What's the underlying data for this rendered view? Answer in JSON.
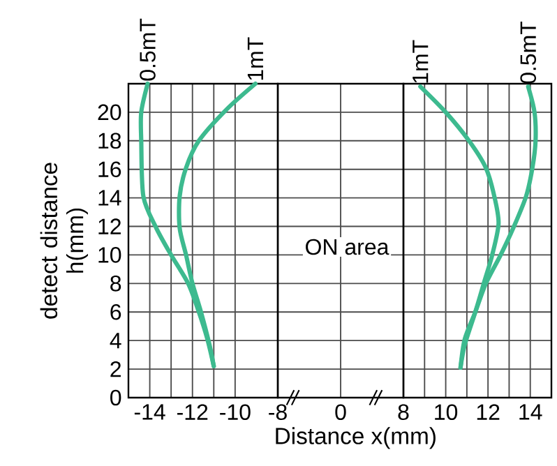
{
  "chart_data": [
    {
      "type": "line",
      "ylabel": "detect distance h(mm)",
      "xlim": [
        -15,
        -8
      ],
      "xticks": [
        -14,
        {
          "value": -13,
          "label": null
        },
        -12,
        {
          "value": -11,
          "label": null
        },
        -10,
        -8
      ],
      "ylim": [
        0,
        22
      ],
      "yticks": [
        0,
        2,
        4,
        6,
        8,
        10,
        12,
        14,
        16,
        18,
        20
      ],
      "grid": true,
      "series": [
        {
          "name": "0.5mT",
          "color": "#3dba8f",
          "x": [
            -14.1,
            -14.4,
            -14.4,
            -14.3,
            -13.7,
            -13.0,
            -12.2,
            -11.7,
            -11.3,
            -11.0
          ],
          "values": [
            22,
            20,
            18,
            14.1,
            11.9,
            10,
            8,
            6,
            4.1,
            2.2
          ]
        },
        {
          "name": "1mT",
          "color": "#3dba8f",
          "x": [
            -9.05,
            -10.4,
            -11.7,
            -12.3,
            -12.6,
            -12.6,
            -12.3,
            -12.0,
            -11.6,
            -11.2,
            -11.0
          ],
          "values": [
            22,
            20.2,
            18,
            16.1,
            14.1,
            11.9,
            10,
            8,
            6,
            3.7,
            2.2
          ]
        }
      ]
    },
    {
      "type": "line",
      "xlabel": "Distance x(mm)",
      "annotations": [
        "ON area"
      ],
      "categories": [
        "0"
      ],
      "ylim": [
        0,
        22
      ],
      "yticks": [
        0,
        2,
        4,
        6,
        8,
        10,
        12,
        14,
        16,
        18,
        20
      ],
      "grid": true,
      "tick_labels": "x"
    },
    {
      "type": "line",
      "xlim": [
        8,
        15
      ],
      "xticks": [
        8,
        {
          "value": 9,
          "label": null
        },
        10,
        {
          "value": 11,
          "label": null
        },
        12,
        {
          "value": 13,
          "label": null
        },
        14
      ],
      "ylim": [
        0,
        22
      ],
      "yticks": [
        0,
        2,
        4,
        6,
        8,
        10,
        12,
        14,
        16,
        18,
        20
      ],
      "grid": true,
      "tick_labels": "x",
      "series": [
        {
          "name": "1mT",
          "color": "#3dba8f",
          "x": [
            8.8,
            10.0,
            11.1,
            11.9,
            12.3,
            12.5,
            12.2,
            11.8,
            11.4,
            10.9,
            10.7
          ],
          "values": [
            21.8,
            20,
            18,
            16.1,
            14.1,
            12.2,
            10,
            8,
            6,
            3.7,
            2.1
          ]
        },
        {
          "name": "0.5mT",
          "color": "#3dba8f",
          "x": [
            13.9,
            14.2,
            14.25,
            14.1,
            13.8,
            13.2,
            12.6,
            11.9,
            11.4,
            10.9,
            10.7
          ],
          "values": [
            21.8,
            20,
            18,
            16.1,
            14.1,
            11.9,
            10,
            8,
            6,
            4.1,
            2.1
          ]
        }
      ]
    }
  ]
}
